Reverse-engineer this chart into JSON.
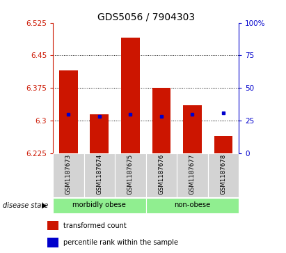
{
  "title": "GDS5056 / 7904303",
  "samples": [
    "GSM1187673",
    "GSM1187674",
    "GSM1187675",
    "GSM1187676",
    "GSM1187677",
    "GSM1187678"
  ],
  "bar_tops": [
    6.415,
    6.315,
    6.49,
    6.375,
    6.335,
    6.265
  ],
  "bar_bottoms": [
    6.225,
    6.225,
    6.225,
    6.225,
    6.225,
    6.225
  ],
  "blue_dots_y": [
    6.315,
    6.31,
    6.315,
    6.31,
    6.315,
    6.317
  ],
  "ylim": [
    6.225,
    6.525
  ],
  "yticks_left": [
    6.225,
    6.3,
    6.375,
    6.45,
    6.525
  ],
  "yticks_right_vals": [
    0,
    25,
    50,
    75,
    100
  ],
  "yticks_right_mapped": [
    6.225,
    6.3,
    6.375,
    6.45,
    6.525
  ],
  "grid_lines": [
    6.3,
    6.375,
    6.45
  ],
  "groups": [
    {
      "label": "morbidly obese",
      "indices": [
        0,
        1,
        2
      ],
      "color": "#90ee90"
    },
    {
      "label": "non-obese",
      "indices": [
        3,
        4,
        5
      ],
      "color": "#90ee90"
    }
  ],
  "bar_color": "#cc1500",
  "blue_dot_color": "#0000cc",
  "left_tick_color": "#cc1500",
  "right_tick_color": "#0000cc",
  "tick_fontsize": 7.5,
  "title_fontsize": 10,
  "disease_state_label": "disease state",
  "legend_items": [
    {
      "color": "#cc1500",
      "label": "transformed count"
    },
    {
      "color": "#0000cc",
      "label": "percentile rank within the sample"
    }
  ]
}
